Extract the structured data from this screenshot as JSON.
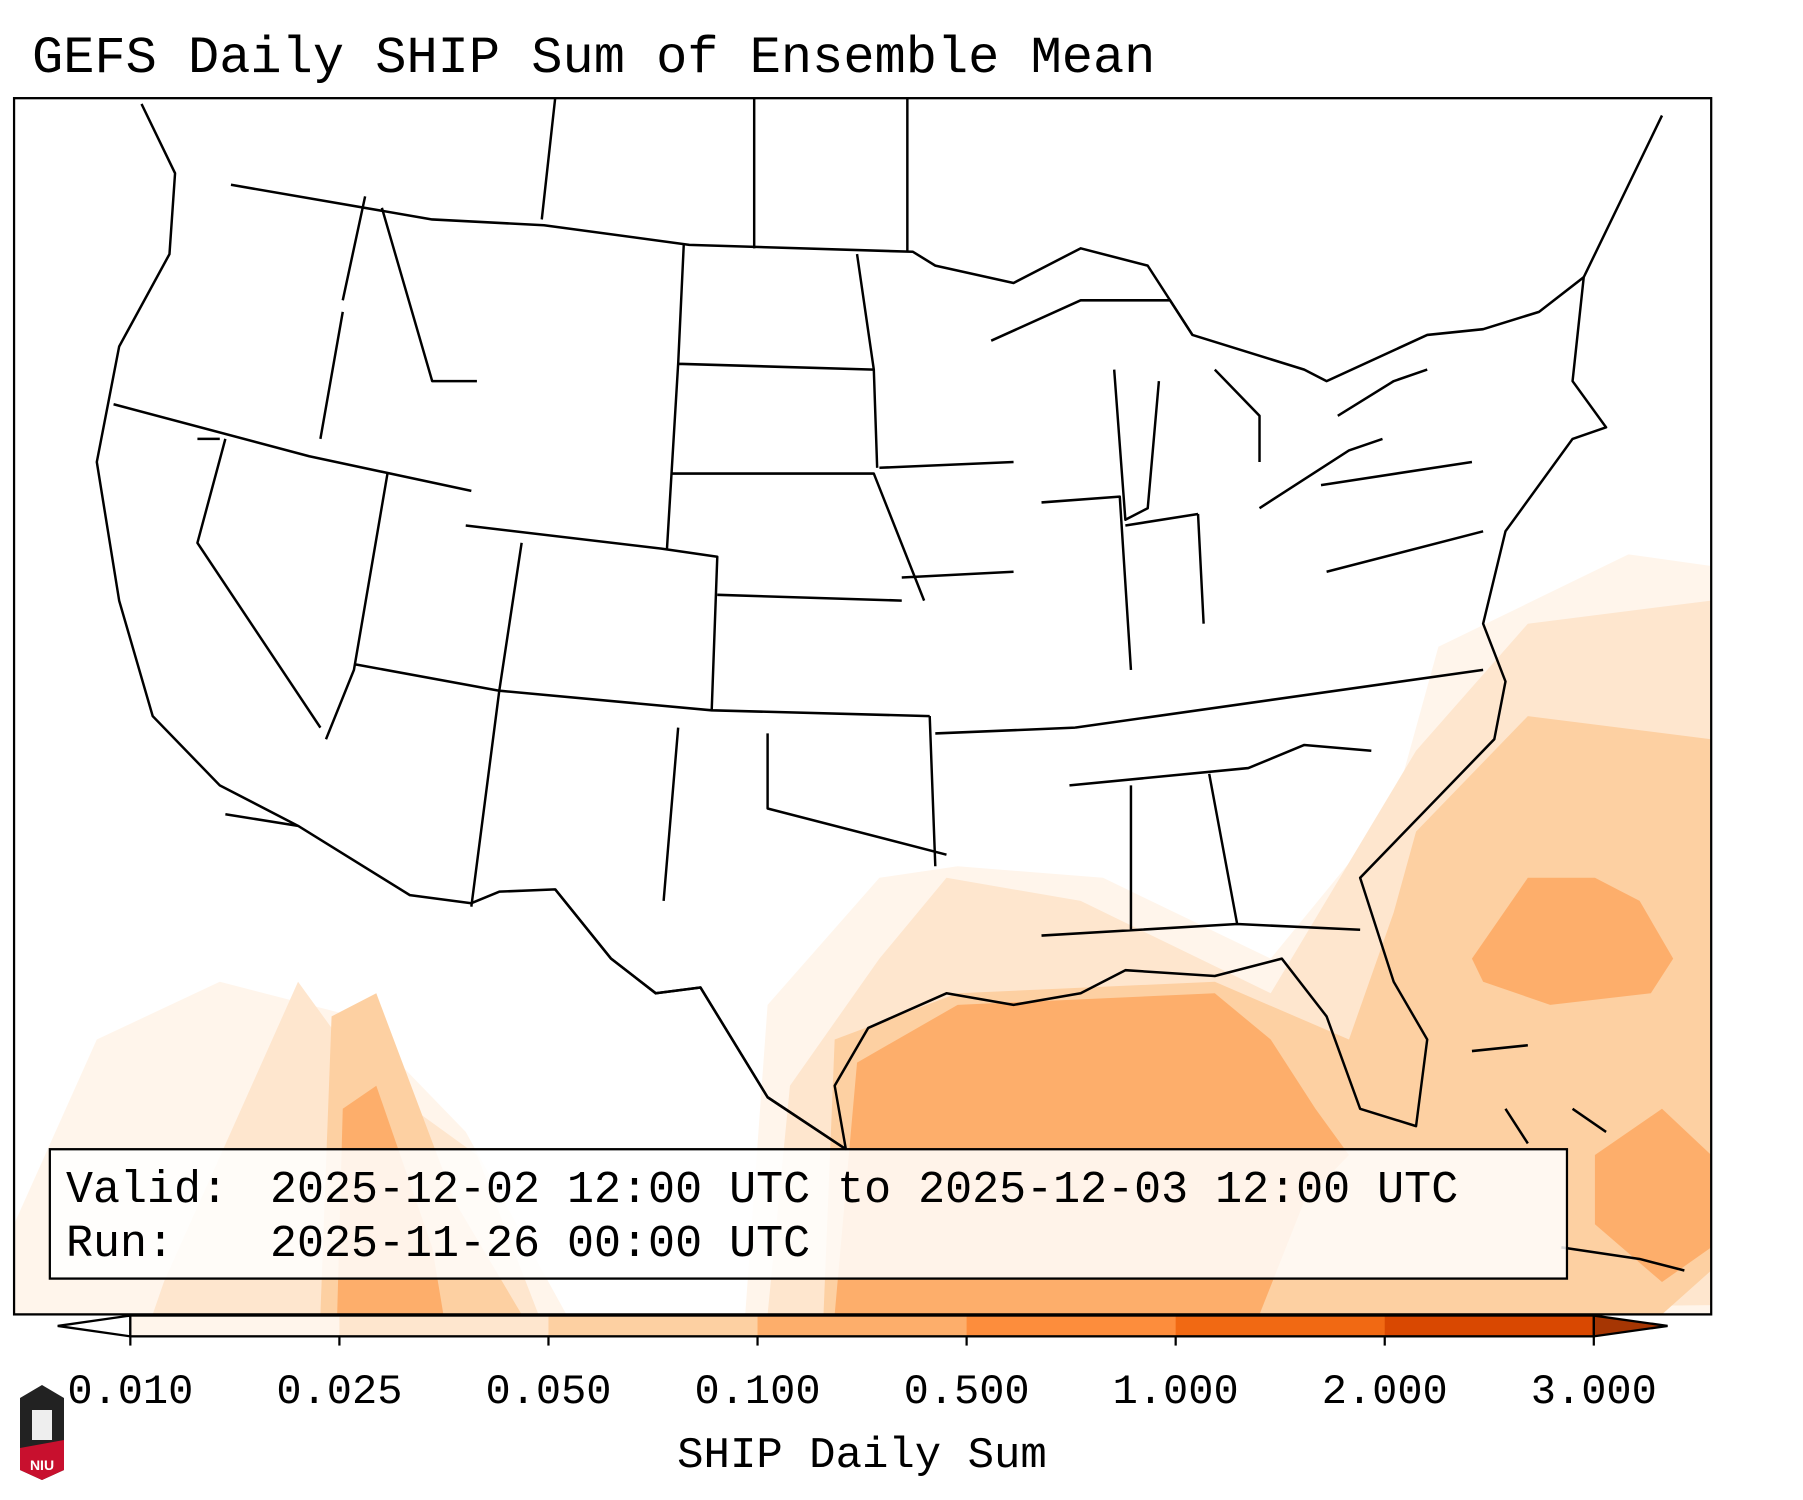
{
  "title": "GEFS Daily SHIP Sum of Ensemble Mean",
  "info_box": {
    "valid_label": "Valid:",
    "valid_value": "2025-12-02 12:00 UTC to 2025-12-03 12:00 UTC",
    "run_label": "Run:",
    "run_value": "2025-11-26 00:00 UTC"
  },
  "colorbar": {
    "label": "SHIP Daily Sum",
    "ticks": [
      "0.010",
      "0.025",
      "0.050",
      "0.100",
      "0.500",
      "1.000",
      "2.000",
      "3.000"
    ],
    "colors": [
      "#fff5eb",
      "#fee6ce",
      "#fdd0a2",
      "#fdae6b",
      "#fd8d3c",
      "#f16913",
      "#d94801"
    ],
    "under_color": "#ffffff",
    "over_color": "#a63603"
  },
  "logo": {
    "text": "NIU"
  }
}
